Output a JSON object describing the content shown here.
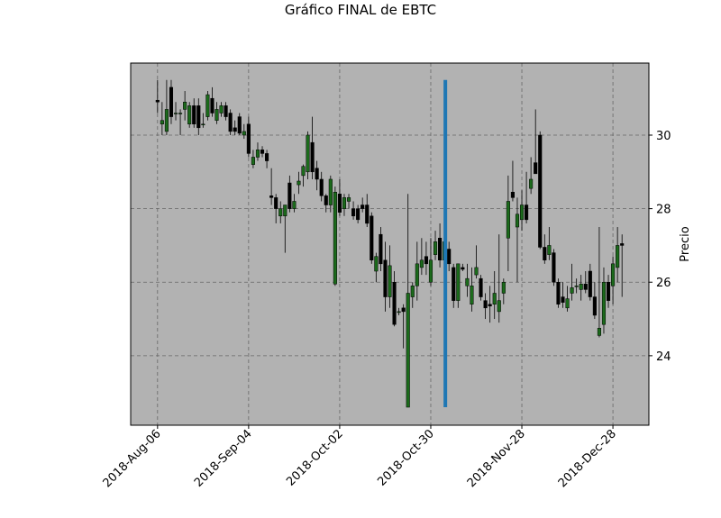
{
  "chart_data": {
    "type": "candlestick",
    "title": "Gráfico FINAL de EBTC",
    "y_label": "Precio",
    "categories": [
      "2018-Aug-06",
      null,
      null,
      null,
      null,
      null,
      null,
      null,
      null,
      null,
      null,
      null,
      null,
      null,
      null,
      null,
      null,
      null,
      null,
      null,
      "2018-Sep-04",
      null,
      null,
      null,
      null,
      null,
      null,
      null,
      null,
      null,
      null,
      null,
      null,
      null,
      null,
      null,
      null,
      null,
      null,
      null,
      "2018-Oct-02",
      null,
      null,
      null,
      null,
      null,
      null,
      null,
      null,
      null,
      null,
      null,
      null,
      null,
      null,
      null,
      null,
      null,
      null,
      null,
      "2018-Oct-30",
      null,
      null,
      null,
      null,
      null,
      null,
      null,
      null,
      null,
      null,
      null,
      null,
      null,
      null,
      null,
      null,
      null,
      null,
      null,
      "2018-Nov-28",
      null,
      null,
      null,
      null,
      null,
      null,
      null,
      null,
      null,
      null,
      null,
      null,
      null,
      null,
      null,
      null,
      null,
      null,
      null,
      "2018-Dec-28",
      null,
      null
    ],
    "open": [
      30.95,
      30.3,
      30.1,
      31.3,
      30.6,
      30.6,
      30.7,
      30.3,
      30.8,
      30.8,
      30.3,
      30.5,
      31.0,
      30.4,
      30.6,
      30.8,
      30.6,
      30.2,
      30.5,
      30.0,
      30.3,
      29.2,
      29.4,
      29.6,
      29.5,
      28.35,
      28.3,
      27.8,
      27.8,
      28.7,
      28.0,
      28.65,
      28.9,
      29.0,
      29.8,
      29.1,
      28.8,
      28.35,
      28.1,
      25.95,
      28.4,
      28.0,
      28.2,
      28.0,
      28.0,
      28.1,
      28.1,
      27.8,
      26.3,
      27.3,
      26.6,
      25.6,
      26.0,
      25.2,
      25.3,
      22.6,
      25.6,
      25.9,
      26.4,
      26.7,
      26.0,
      26.75,
      27.2,
      26.6,
      26.9,
      26.4,
      25.5,
      26.4,
      25.9,
      25.4,
      26.2,
      26.1,
      25.5,
      25.4,
      25.4,
      25.2,
      25.7,
      27.2,
      28.45,
      27.5,
      27.7,
      28.1,
      28.55,
      29.25,
      30.0,
      26.95,
      26.75,
      26.8,
      26.0,
      25.6,
      25.3,
      25.7,
      25.9,
      25.8,
      25.95,
      26.3,
      25.6,
      24.55,
      24.85,
      26.0,
      25.9,
      26.4,
      27.05
    ],
    "high": [
      31.5,
      30.9,
      31.5,
      31.5,
      30.9,
      30.7,
      31.2,
      30.9,
      31.0,
      31.0,
      30.6,
      31.2,
      31.3,
      30.9,
      30.9,
      30.9,
      30.7,
      30.4,
      30.6,
      30.3,
      30.5,
      29.6,
      29.8,
      29.7,
      29.6,
      29.1,
      28.4,
      28.2,
      28.1,
      28.9,
      28.4,
      29.0,
      29.2,
      30.1,
      30.5,
      29.3,
      29.0,
      28.4,
      28.9,
      28.6,
      28.8,
      28.4,
      28.4,
      28.2,
      28.1,
      28.3,
      28.4,
      27.9,
      26.8,
      27.5,
      27.1,
      27.0,
      26.3,
      25.3,
      25.4,
      28.4,
      26.0,
      27.1,
      27.2,
      27.1,
      27.2,
      27.4,
      27.6,
      27.3,
      27.1,
      26.5,
      26.5,
      26.5,
      26.5,
      26.4,
      27.0,
      26.2,
      25.7,
      25.9,
      26.3,
      27.3,
      26.1,
      28.9,
      29.3,
      28.3,
      28.5,
      29.0,
      29.4,
      30.7,
      30.1,
      27.3,
      27.5,
      26.9,
      26.1,
      26.0,
      25.9,
      26.5,
      26.1,
      26.2,
      26.3,
      26.5,
      26.0,
      27.5,
      26.4,
      26.2,
      26.7,
      27.5,
      27.3
    ],
    "low": [
      30.6,
      30.0,
      30.0,
      30.3,
      30.4,
      30.0,
      30.4,
      30.2,
      30.2,
      30.0,
      30.2,
      30.4,
      30.5,
      30.3,
      30.5,
      30.4,
      30.0,
      30.0,
      30.0,
      29.9,
      29.4,
      29.1,
      29.3,
      29.4,
      29.1,
      28.1,
      27.6,
      27.6,
      26.8,
      27.9,
      27.9,
      28.4,
      28.6,
      28.8,
      28.8,
      28.5,
      28.2,
      27.9,
      27.9,
      25.9,
      27.8,
      27.8,
      28.0,
      27.7,
      27.6,
      27.9,
      27.5,
      26.5,
      26.0,
      26.3,
      25.2,
      25.3,
      24.8,
      25.1,
      24.2,
      22.6,
      25.3,
      25.5,
      26.2,
      26.2,
      25.9,
      26.6,
      26.4,
      26.4,
      26.3,
      25.3,
      25.3,
      26.3,
      25.6,
      25.2,
      26.1,
      25.5,
      25.0,
      24.9,
      25.0,
      24.9,
      25.4,
      26.3,
      28.2,
      26.0,
      27.4,
      27.6,
      28.4,
      29.0,
      26.9,
      26.5,
      26.6,
      25.9,
      25.3,
      25.3,
      25.2,
      25.5,
      25.7,
      25.5,
      25.7,
      25.5,
      25.0,
      24.5,
      24.6,
      25.3,
      25.4,
      26.0,
      25.6
    ],
    "close": [
      30.9,
      30.4,
      30.7,
      30.5,
      30.6,
      30.6,
      30.9,
      30.8,
      30.3,
      30.2,
      30.3,
      31.1,
      30.6,
      30.7,
      30.8,
      30.5,
      30.1,
      30.1,
      30.05,
      30.1,
      29.5,
      29.4,
      29.6,
      29.5,
      29.3,
      28.3,
      28.0,
      28.0,
      28.1,
      28.0,
      28.2,
      28.75,
      29.15,
      30.0,
      29.0,
      28.8,
      28.35,
      28.1,
      28.8,
      28.45,
      27.9,
      28.3,
      28.3,
      27.8,
      27.7,
      28.0,
      27.6,
      26.6,
      26.7,
      26.5,
      25.6,
      26.45,
      24.85,
      25.2,
      25.2,
      25.7,
      25.9,
      26.5,
      26.6,
      26.5,
      26.6,
      27.1,
      26.6,
      27.1,
      26.5,
      25.5,
      26.5,
      26.35,
      26.1,
      25.9,
      26.4,
      25.6,
      25.3,
      25.35,
      25.7,
      25.5,
      26.0,
      28.2,
      28.3,
      27.85,
      28.1,
      27.7,
      28.8,
      28.95,
      26.95,
      26.6,
      27.0,
      26.0,
      25.4,
      25.45,
      25.55,
      25.85,
      25.9,
      25.95,
      25.8,
      25.6,
      25.1,
      24.75,
      26.0,
      25.5,
      26.5,
      27.0,
      27.0
    ],
    "up_color": "#1b6a1b",
    "down_color": "#000000",
    "background": "#b2b2b2",
    "marker": {
      "index": 63.2,
      "ymin": 22.6,
      "ymax": 31.5,
      "color": "#1f77b4"
    },
    "xlim": [
      -5.9,
      107.9
    ],
    "ylim": [
      22.11,
      31.96
    ],
    "yticks": [
      24,
      26,
      28,
      30
    ],
    "grid": true
  }
}
